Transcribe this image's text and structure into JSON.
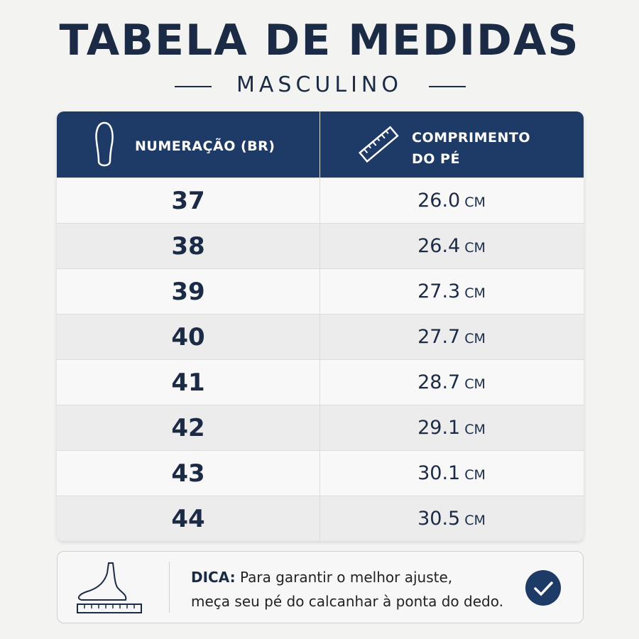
{
  "header": {
    "title": "TABELA DE MEDIDAS",
    "subtitle": "MASCULINO"
  },
  "table": {
    "columns": [
      "NUMERAÇÃO (BR)",
      "COMPRIMENTO DO PÉ"
    ],
    "rows": [
      {
        "size": "37",
        "length": "26.0",
        "unit": "CM"
      },
      {
        "size": "38",
        "length": "26.4",
        "unit": "CM"
      },
      {
        "size": "39",
        "length": "27.3",
        "unit": "CM"
      },
      {
        "size": "40",
        "length": "27.7",
        "unit": "CM"
      },
      {
        "size": "41",
        "length": "28.7",
        "unit": "CM"
      },
      {
        "size": "42",
        "length": "29.1",
        "unit": "CM"
      },
      {
        "size": "43",
        "length": "30.1",
        "unit": "CM"
      },
      {
        "size": "44",
        "length": "30.5",
        "unit": "CM"
      }
    ]
  },
  "tip": {
    "label": "DICA:",
    "lines": [
      "Para garantir o melhor ajuste,",
      "meça seu pé do calcanhar à ponta do dedo."
    ]
  }
}
